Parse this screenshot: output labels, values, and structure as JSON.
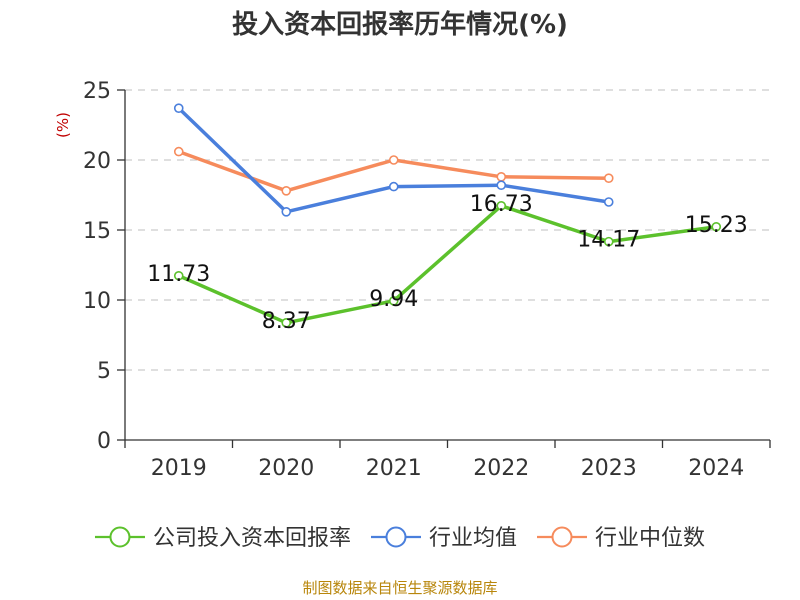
{
  "title": "投入资本回报率历年情况(%)",
  "source": "制图数据来自恒生聚源数据库",
  "chart_data": {
    "type": "line",
    "title": "投入资本回报率历年情况(%)",
    "ylabel": "(%)",
    "ylim": [
      0,
      25
    ],
    "yticks": [
      0,
      5,
      10,
      15,
      20,
      25
    ],
    "categories": [
      "2019",
      "2020",
      "2021",
      "2022",
      "2023",
      "2024"
    ],
    "grid": "horizontal-dashed",
    "legend_position": "bottom",
    "series": [
      {
        "name": "公司投入资本回报率",
        "color": "#5cc12c",
        "values": [
          11.73,
          8.37,
          9.94,
          16.73,
          14.17,
          15.23
        ],
        "labels": [
          "11.73",
          "8.37",
          "9.94",
          "16.73",
          "14.17",
          "15.23"
        ]
      },
      {
        "name": "行业均值",
        "color": "#4a7fdc",
        "values": [
          23.7,
          16.3,
          18.1,
          18.2,
          17.0,
          null
        ]
      },
      {
        "name": "行业中位数",
        "color": "#f68b5c",
        "values": [
          20.6,
          17.8,
          20.0,
          18.8,
          18.7,
          null
        ]
      }
    ]
  }
}
